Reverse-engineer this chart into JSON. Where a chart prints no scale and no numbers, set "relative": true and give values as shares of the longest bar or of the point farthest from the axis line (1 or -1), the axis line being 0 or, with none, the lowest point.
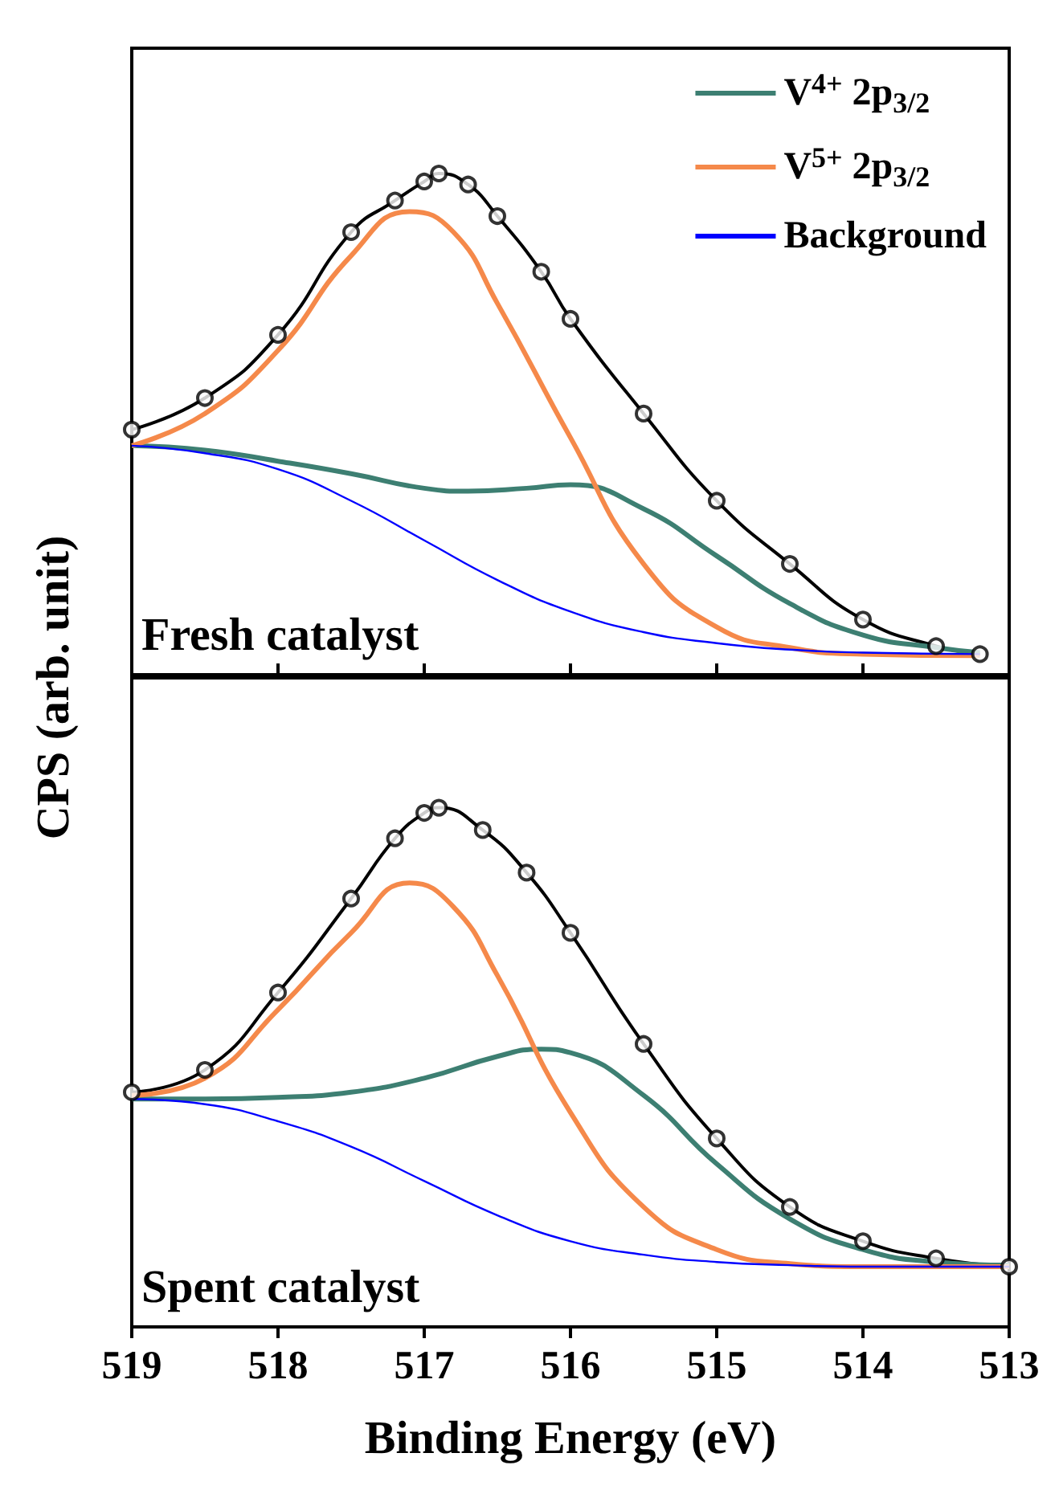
{
  "chart_data": [
    {
      "type": "line",
      "relative": true,
      "ylabel": "CPS (arb. unit)",
      "xlim": [
        519,
        513
      ],
      "xticks": [
        519,
        518,
        517,
        516,
        515,
        514,
        513
      ],
      "tick_labels": false,
      "legend": "top right",
      "annotations": [
        "Fresh catalyst"
      ],
      "series": [
        {
          "type": "scatter",
          "color": "#000000",
          "marker": "circle",
          "x": [
            519,
            518.5,
            518,
            517.5,
            517.2,
            517,
            516.9,
            516.7,
            516.5,
            516.2,
            516,
            515.5,
            515,
            514.5,
            514,
            513.5,
            513.2
          ],
          "values": [
            0.489,
            0.552,
            0.678,
            0.883,
            0.946,
            0.984,
            1,
            0.978,
            0.915,
            0.804,
            0.71,
            0.521,
            0.347,
            0.221,
            0.11,
            0.057,
            0.041
          ]
        },
        {
          "color": "#000000",
          "x": [
            519,
            518.5,
            518,
            517.5,
            517.2,
            517,
            516.9,
            516.7,
            516.5,
            516.2,
            516,
            515.5,
            515,
            514.5,
            514,
            513.5,
            513.2
          ],
          "values": [
            0.489,
            0.552,
            0.678,
            0.883,
            0.946,
            0.984,
            1,
            0.978,
            0.915,
            0.804,
            0.71,
            0.521,
            0.347,
            0.221,
            0.11,
            0.057,
            0.041
          ]
        },
        {
          "name": "V$^{4+}$ 2p$_{3/2}$",
          "color": "#3d7f72",
          "x": [
            519,
            518.5,
            518,
            517.5,
            517,
            516.7,
            516.3,
            516,
            515.5,
            515,
            514.5,
            514,
            513.5,
            513.2
          ],
          "values": [
            0.457,
            0.448,
            0.426,
            0.401,
            0.372,
            0.366,
            0.372,
            0.379,
            0.331,
            0.237,
            0.142,
            0.079,
            0.054,
            0.044
          ]
        },
        {
          "name": "V$^{5+}$ 2p$_{3/2}$",
          "color": "#f5894a",
          "x": [
            519,
            518.5,
            518,
            517.5,
            517.1,
            516.8,
            516.5,
            516,
            515.5,
            515,
            514.5,
            514,
            513.2
          ],
          "values": [
            0.457,
            0.521,
            0.647,
            0.836,
            0.924,
            0.883,
            0.741,
            0.473,
            0.221,
            0.095,
            0.054,
            0.041,
            0.038
          ]
        },
        {
          "name": "Background",
          "color": "#0000ff",
          "x": [
            519,
            518.5,
            518,
            517.5,
            517,
            516.5,
            516,
            515.5,
            515,
            514.5,
            514,
            513.2
          ],
          "values": [
            0.457,
            0.442,
            0.41,
            0.347,
            0.268,
            0.189,
            0.126,
            0.085,
            0.063,
            0.05,
            0.044,
            0.041
          ]
        }
      ]
    },
    {
      "type": "line",
      "relative": true,
      "xlabel": "Binding Energy (eV)",
      "xlim": [
        519,
        513
      ],
      "xticks": [
        519,
        518,
        517,
        516,
        515,
        514,
        513
      ],
      "tick_labels": "x",
      "annotations": [
        "Spent catalyst"
      ],
      "series": [
        {
          "type": "scatter",
          "color": "#000000",
          "marker": "circle",
          "x": [
            519,
            518.5,
            518,
            517.5,
            517.2,
            517,
            516.9,
            516.6,
            516.3,
            516,
            515.5,
            515,
            514.5,
            514,
            513.5,
            513
          ],
          "values": [
            0.452,
            0.495,
            0.644,
            0.825,
            0.941,
            0.99,
            1,
            0.957,
            0.875,
            0.759,
            0.545,
            0.363,
            0.231,
            0.165,
            0.132,
            0.116
          ]
        },
        {
          "color": "#000000",
          "x": [
            519,
            518.5,
            518,
            517.5,
            517.2,
            517,
            516.9,
            516.6,
            516.3,
            516,
            515.5,
            515,
            514.5,
            514,
            513.5,
            513
          ],
          "values": [
            0.452,
            0.495,
            0.644,
            0.825,
            0.941,
            0.99,
            1,
            0.957,
            0.875,
            0.759,
            0.545,
            0.363,
            0.231,
            0.165,
            0.132,
            0.116
          ]
        },
        {
          "color": "#3d7f72",
          "x": [
            519,
            518.5,
            518,
            517.5,
            517,
            516.5,
            516.2,
            516,
            515.5,
            515,
            514.5,
            514,
            513.5,
            513
          ],
          "values": [
            0.439,
            0.439,
            0.442,
            0.452,
            0.479,
            0.521,
            0.535,
            0.528,
            0.446,
            0.314,
            0.208,
            0.149,
            0.125,
            0.119
          ]
        },
        {
          "color": "#f5894a",
          "x": [
            519,
            518.5,
            518,
            517.5,
            517.1,
            516.8,
            516.5,
            516,
            515.5,
            515,
            514.5,
            514,
            513
          ],
          "values": [
            0.446,
            0.479,
            0.611,
            0.759,
            0.855,
            0.809,
            0.677,
            0.413,
            0.231,
            0.149,
            0.122,
            0.116,
            0.116
          ]
        },
        {
          "color": "#0000ff",
          "x": [
            519,
            518.5,
            518,
            517.5,
            517,
            516.5,
            516,
            515.5,
            515,
            514.5,
            514,
            513
          ],
          "values": [
            0.439,
            0.429,
            0.396,
            0.347,
            0.281,
            0.215,
            0.165,
            0.139,
            0.125,
            0.119,
            0.116,
            0.116
          ]
        }
      ]
    }
  ]
}
